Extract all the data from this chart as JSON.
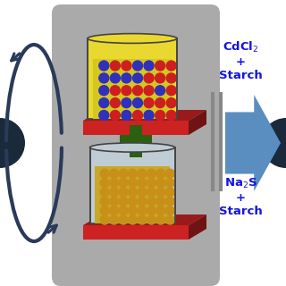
{
  "bg_color": "#ffffff",
  "panel_color": "#aaaaaa",
  "plate_color": "#cc2222",
  "beaker1_body_color": "#e8d830",
  "beaker1_liquid_color": "#d4c820",
  "beaker2_body_color": "#c0ccd4",
  "beaker2_liquid_color": "#c8a828",
  "plus_color": "#2a6010",
  "label1_text": "CdCl$_2$\n+\nStarch",
  "label2_text": "Na$_2$S\n+\nStarch",
  "label_color": "#1515dd",
  "arrow_color": "#2a3a5a",
  "right_arrow_color": "#5a8ec0",
  "right_arrow_color2": "#7aaad8",
  "bar_color": "#888888",
  "dark_sc_color": "#1a2a3a"
}
